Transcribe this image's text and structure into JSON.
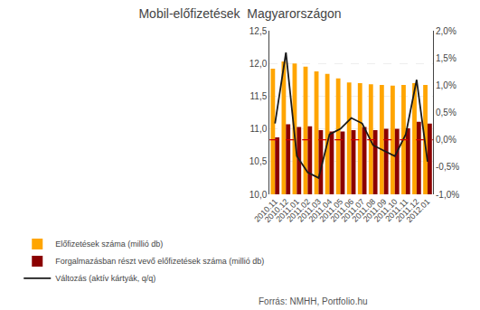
{
  "chart_data": {
    "type": "bar",
    "title": "Mobil-előfizetések  Magyarországon",
    "categories": [
      "2010.11",
      "2010.12",
      "2011.01",
      "2011.02",
      "2011.03",
      "2011.04",
      "2011.05",
      "2011.06",
      "2011.07",
      "2011.08",
      "2011.09",
      "2011.10",
      "2011.11",
      "2011.12",
      "2012.01"
    ],
    "series": [
      {
        "name": "Előfizetések száma (millió db)",
        "color": "#FFA500",
        "type": "bar",
        "values": [
          11.92,
          12.03,
          12.0,
          11.95,
          11.88,
          11.84,
          11.77,
          11.71,
          11.7,
          11.68,
          11.67,
          11.66,
          11.67,
          11.7,
          11.67
        ]
      },
      {
        "name": "Forgalmazásban részt vevő előfizetések száma (millió db)",
        "color": "#8B0000",
        "type": "bar",
        "values": [
          10.87,
          11.07,
          11.03,
          11.04,
          10.98,
          10.96,
          10.96,
          10.98,
          11.03,
          10.98,
          11.0,
          11.0,
          11.01,
          11.11,
          11.08
        ]
      },
      {
        "name": "Változás (aktív kártyák, q/q)",
        "color": "#1a1a1a",
        "type": "line",
        "axis": "y2",
        "values": [
          0.003,
          0.016,
          -0.003,
          -0.006,
          -0.007,
          0.001,
          0.002,
          0.004,
          0.003,
          -0.001,
          -0.002,
          -0.003,
          0.001,
          0.011,
          -0.004
        ]
      }
    ],
    "ylim": [
      10.0,
      12.5
    ],
    "yticks": [
      {
        "value": 10.0,
        "label": "10,0"
      },
      {
        "value": 10.5,
        "label": "10,5"
      },
      {
        "value": 11.0,
        "label": "11,0"
      },
      {
        "value": 11.5,
        "label": "11,5"
      },
      {
        "value": 12.0,
        "label": "12,0"
      },
      {
        "value": 12.5,
        "label": "12,5"
      }
    ],
    "y2lim": [
      -0.01,
      0.02
    ],
    "y2ticks": [
      {
        "value": -0.01,
        "label": "-1,0%"
      },
      {
        "value": -0.005,
        "label": "-0,5%"
      },
      {
        "value": 0.0,
        "label": "0,0%"
      },
      {
        "value": 0.005,
        "label": "0,5%"
      },
      {
        "value": 0.01,
        "label": "1,0%"
      },
      {
        "value": 0.015,
        "label": "1,5%"
      },
      {
        "value": 0.02,
        "label": "2,0%"
      }
    ],
    "reference_lines": [
      {
        "value": 0.0,
        "axis": "y2",
        "color": "#cc0000",
        "line_style": "dashed"
      }
    ],
    "annotations": [
      "Forrás: NMHH, Portfolio.hu"
    ],
    "grid": true,
    "legend": "bottom"
  }
}
